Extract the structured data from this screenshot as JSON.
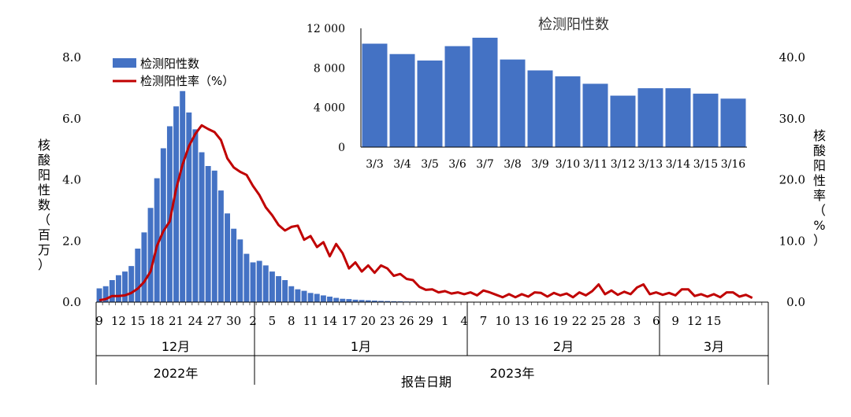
{
  "chart_data": [
    {
      "type": "bar+line",
      "ylabel_left": "核酸阳性数（百万）",
      "ylabel_right": "核酸阳性率（%）",
      "xlabel": "报告日期",
      "ylim_left": [
        0,
        8.0
      ],
      "ylim_right": [
        0,
        40.0
      ],
      "yticks_left": [
        "0.0",
        "2.0",
        "4.0",
        "6.0",
        "8.0"
      ],
      "yticks_right": [
        "0.0",
        "10.0",
        "20.0",
        "30.0",
        "40.0"
      ],
      "x_tick_labels": [
        "9",
        "12",
        "15",
        "18",
        "21",
        "24",
        "27",
        "30",
        "2",
        "5",
        "8",
        "11",
        "14",
        "17",
        "20",
        "23",
        "26",
        "29",
        "1",
        "4",
        "7",
        "10",
        "13",
        "16",
        "19",
        "22",
        "25",
        "28",
        "3",
        "6",
        "9",
        "12",
        "15"
      ],
      "months": [
        "12月",
        "1月",
        "2月",
        "3月"
      ],
      "years": [
        "2022年",
        "2023年"
      ],
      "series": [
        {
          "name": "检测阳性数",
          "kind": "bar",
          "color": "#4472C4",
          "values": [
            0.45,
            0.52,
            0.72,
            0.88,
            1.0,
            1.18,
            1.75,
            2.28,
            3.08,
            4.05,
            5.03,
            5.75,
            6.4,
            6.9,
            6.2,
            5.65,
            4.9,
            4.45,
            4.3,
            3.65,
            2.9,
            2.4,
            2.05,
            1.58,
            1.3,
            1.35,
            1.2,
            1.0,
            0.85,
            0.72,
            0.52,
            0.42,
            0.37,
            0.3,
            0.27,
            0.22,
            0.18,
            0.14,
            0.11,
            0.1,
            0.08,
            0.07,
            0.06,
            0.05,
            0.04,
            0.035,
            0.03,
            0.025,
            0.02,
            0.02,
            0.018,
            0.016,
            0.015,
            0.015,
            0.014,
            0.013,
            0.012,
            0.012,
            0.011,
            0.01,
            0.01,
            0.01,
            0.01,
            0.01,
            0.01,
            0.01,
            0.01,
            0.01,
            0.01,
            0.01,
            0.01,
            0.01,
            0.01,
            0.01,
            0.01,
            0.01,
            0.01,
            0.01,
            0.01,
            0.01,
            0.01,
            0.01,
            0.01,
            0.01,
            0.01,
            0.01,
            0.01,
            0.01,
            0.01,
            0.01,
            0.01,
            0.01,
            0.01,
            0.01,
            0.01,
            0.01,
            0.01,
            0.01,
            0.01,
            0.01,
            0.01,
            0.01,
            0.01,
            0.01,
            0.01
          ]
        },
        {
          "name": "检测阳性率（%）",
          "kind": "line",
          "color": "#C00000",
          "values": [
            0.3,
            0.5,
            1.0,
            1.0,
            1.1,
            1.5,
            2.2,
            3.3,
            5.0,
            9.2,
            11.6,
            13.2,
            18.5,
            22.5,
            25.5,
            27.5,
            28.9,
            28.3,
            27.8,
            26.5,
            23.5,
            22.0,
            21.3,
            20.8,
            19.0,
            17.5,
            15.5,
            14.2,
            12.6,
            11.7,
            12.3,
            12.5,
            10.2,
            10.8,
            9.0,
            9.8,
            7.5,
            9.5,
            8.0,
            5.5,
            6.5,
            5.0,
            6.0,
            4.8,
            6.0,
            5.5,
            4.3,
            4.6,
            3.8,
            3.6,
            2.5,
            2.0,
            2.1,
            1.6,
            1.8,
            1.4,
            1.6,
            1.3,
            1.6,
            1.1,
            1.9,
            1.6,
            1.2,
            0.8,
            1.3,
            0.8,
            1.3,
            0.9,
            1.6,
            1.5,
            0.9,
            1.5,
            1.1,
            1.4,
            0.8,
            1.6,
            1.1,
            1.8,
            2.9,
            1.3,
            1.9,
            1.2,
            1.7,
            1.3,
            2.4,
            2.9,
            1.3,
            1.6,
            1.2,
            1.5,
            1.1,
            2.1,
            2.1,
            1.0,
            1.3,
            0.9,
            1.3,
            0.8,
            1.6,
            1.6,
            0.9,
            1.2,
            0.7
          ]
        }
      ],
      "legend_position": "top-left"
    },
    {
      "type": "bar",
      "title": "检测阳性数",
      "categories": [
        "3/3",
        "3/4",
        "3/5",
        "3/6",
        "3/7",
        "3/8",
        "3/9",
        "3/10",
        "3/11",
        "3/12",
        "3/13",
        "3/14",
        "3/15",
        "3/16"
      ],
      "values": [
        10450,
        9400,
        8750,
        10200,
        11050,
        8850,
        7750,
        7150,
        6400,
        5200,
        5950,
        5950,
        5400,
        4900
      ],
      "ylim": [
        0,
        12000
      ],
      "yticks": [
        "0",
        "4 000",
        "8 000",
        "12 000"
      ],
      "color": "#4472C4"
    }
  ]
}
